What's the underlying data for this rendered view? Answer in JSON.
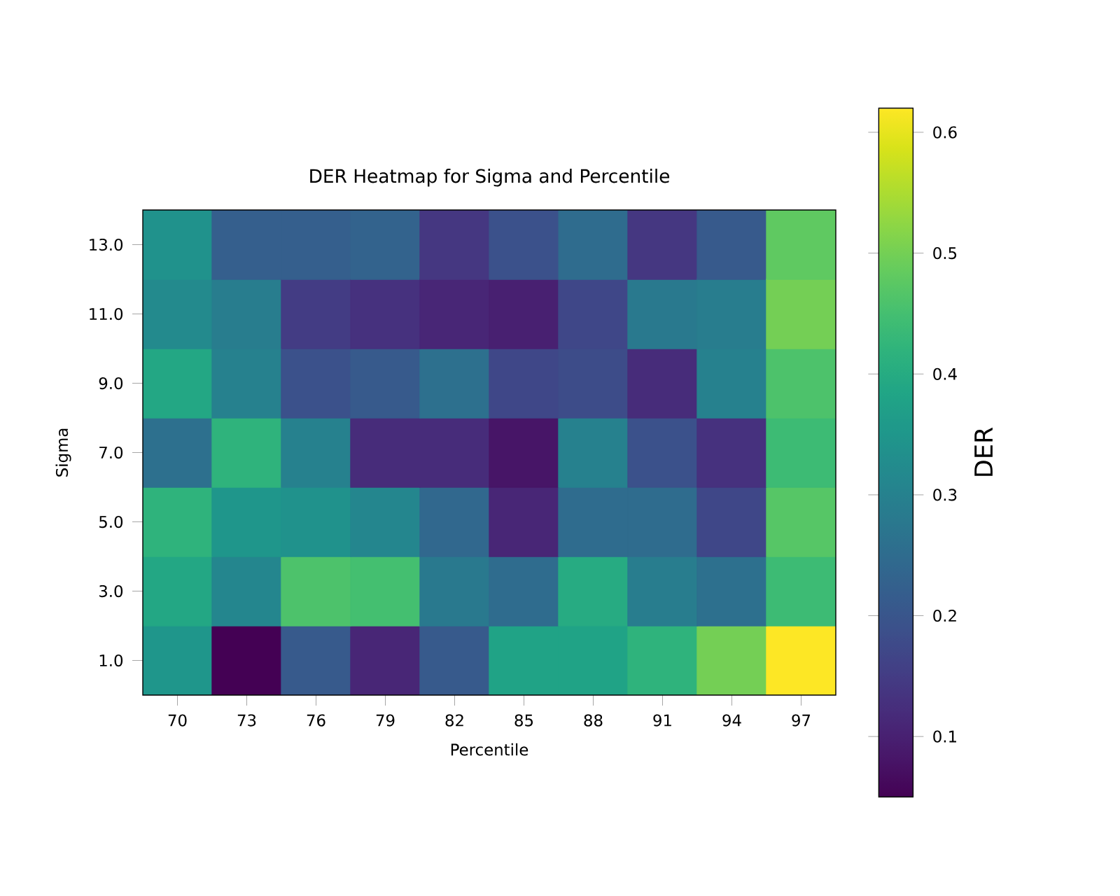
{
  "chart_data": {
    "type": "heatmap",
    "title": "DER Heatmap for Sigma and Percentile",
    "xlabel": "Percentile",
    "ylabel": "Sigma",
    "clabel": "DER",
    "categories": [
      "70",
      "73",
      "76",
      "79",
      "82",
      "85",
      "88",
      "91",
      "94",
      "97"
    ],
    "y_categories": [
      "13.0",
      "11.0",
      "9.0",
      "7.0",
      "5.0",
      "3.0",
      "1.0"
    ],
    "cells": [
      [
        0.34,
        0.22,
        0.22,
        0.23,
        0.14,
        0.19,
        0.25,
        0.14,
        0.21,
        0.48
      ],
      [
        0.32,
        0.29,
        0.15,
        0.13,
        0.11,
        0.1,
        0.17,
        0.28,
        0.29,
        0.5
      ],
      [
        0.39,
        0.3,
        0.19,
        0.21,
        0.26,
        0.17,
        0.18,
        0.12,
        0.3,
        0.46
      ],
      [
        0.26,
        0.42,
        0.3,
        0.12,
        0.12,
        0.08,
        0.3,
        0.19,
        0.13,
        0.44
      ],
      [
        0.42,
        0.35,
        0.34,
        0.31,
        0.24,
        0.11,
        0.25,
        0.25,
        0.17,
        0.47
      ],
      [
        0.39,
        0.31,
        0.46,
        0.45,
        0.28,
        0.25,
        0.4,
        0.29,
        0.26,
        0.44
      ],
      [
        0.35,
        0.05,
        0.21,
        0.11,
        0.21,
        0.38,
        0.38,
        0.42,
        0.5,
        0.62
      ]
    ],
    "clim": [
      0.05,
      0.62
    ],
    "cticks": [
      0.1,
      0.2,
      0.3,
      0.4,
      0.5,
      0.6
    ]
  }
}
